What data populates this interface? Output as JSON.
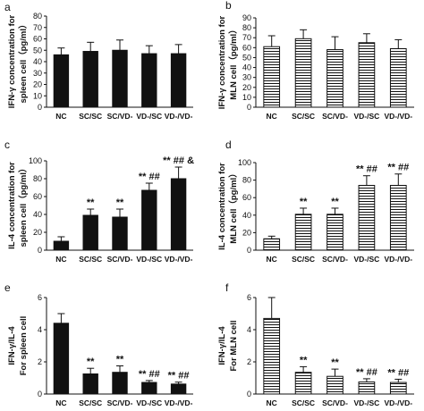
{
  "chart_data": [
    {
      "panel": "a",
      "type": "bar",
      "bar_fill": "solid",
      "ylabel_lines": [
        "IFN-γ concentration for",
        "spleen cell（pg/ml）"
      ],
      "categories": [
        "NC",
        "SC/SC",
        "SC/VD-",
        "VD-/SC",
        "VD-/VD-"
      ],
      "values": [
        46,
        49,
        50,
        47,
        47
      ],
      "errors": [
        6,
        8,
        9,
        7,
        8
      ],
      "ylim": [
        0,
        80
      ],
      "yticks": [
        0,
        10,
        20,
        30,
        40,
        50,
        60,
        70,
        80
      ],
      "annotations": [
        "",
        "",
        "",
        "",
        ""
      ]
    },
    {
      "panel": "b",
      "type": "bar",
      "bar_fill": "horizontal-stripes",
      "ylabel_lines": [
        "IFN-γ concentration for",
        "MLN cell（pg/ml）"
      ],
      "categories": [
        "NC",
        "SC/SC",
        "SC/VD-",
        "VD-/SC",
        "VD-/VD-"
      ],
      "values": [
        61,
        69,
        58,
        65,
        59
      ],
      "errors": [
        11,
        9,
        13,
        9,
        9
      ],
      "ylim": [
        0,
        90
      ],
      "yticks": [
        0,
        10,
        20,
        30,
        40,
        50,
        60,
        70,
        80,
        90
      ],
      "annotations": [
        "",
        "",
        "",
        "",
        ""
      ]
    },
    {
      "panel": "c",
      "type": "bar",
      "bar_fill": "solid",
      "ylabel_lines": [
        "IL-4 concentration for",
        "spleen cell（pg/ml）"
      ],
      "categories": [
        "NC",
        "SC/SC",
        "SC/VD-",
        "VD-/SC",
        "VD-/VD-"
      ],
      "values": [
        10,
        39,
        37,
        67,
        80
      ],
      "errors": [
        5,
        7,
        9,
        8,
        13
      ],
      "ylim": [
        0,
        100
      ],
      "yticks": [
        0,
        20,
        40,
        60,
        80,
        100
      ],
      "annotations": [
        "",
        "**",
        "**",
        "** ##",
        "** ## &"
      ]
    },
    {
      "panel": "d",
      "type": "bar",
      "bar_fill": "horizontal-stripes",
      "ylabel_lines": [
        "IL-4 concentration for",
        "MLN cell（pg/ml）"
      ],
      "categories": [
        "NC",
        "SC/SC",
        "SC/VD-",
        "VD-/SC",
        "VD-/VD-"
      ],
      "values": [
        13,
        41,
        41,
        74,
        74
      ],
      "errors": [
        3,
        7,
        7,
        11,
        13
      ],
      "ylim": [
        0,
        100
      ],
      "yticks": [
        0,
        20,
        40,
        60,
        80,
        100
      ],
      "annotations": [
        "",
        "**",
        "**",
        "** ##",
        "** ##"
      ]
    },
    {
      "panel": "e",
      "type": "bar",
      "bar_fill": "solid",
      "ylabel_lines": [
        "IFN-γ/IL-4",
        "For spleen cell"
      ],
      "categories": [
        "NC",
        "SC/SC",
        "SC/VD-",
        "VD-/SC",
        "VD-/VD-"
      ],
      "values": [
        4.4,
        1.25,
        1.35,
        0.72,
        0.62
      ],
      "errors": [
        0.6,
        0.35,
        0.4,
        0.12,
        0.12
      ],
      "ylim": [
        0,
        6
      ],
      "yticks": [
        0,
        2,
        4,
        6
      ],
      "annotations": [
        "",
        "**",
        "**",
        "** ##",
        "** ##"
      ]
    },
    {
      "panel": "f",
      "type": "bar",
      "bar_fill": "horizontal-stripes",
      "ylabel_lines": [
        "IFN-γ/IL-4",
        "For MLN cell"
      ],
      "categories": [
        "NC",
        "SC/SC",
        "SC/VD-",
        "VD-/SC",
        "VD-/VD-"
      ],
      "values": [
        4.7,
        1.35,
        1.1,
        0.75,
        0.72
      ],
      "errors": [
        1.3,
        0.35,
        0.45,
        0.2,
        0.2
      ],
      "ylim": [
        0,
        6
      ],
      "yticks": [
        0,
        2,
        4,
        6
      ],
      "annotations": [
        "",
        "**",
        "**",
        "** ##",
        "** ##"
      ]
    }
  ]
}
